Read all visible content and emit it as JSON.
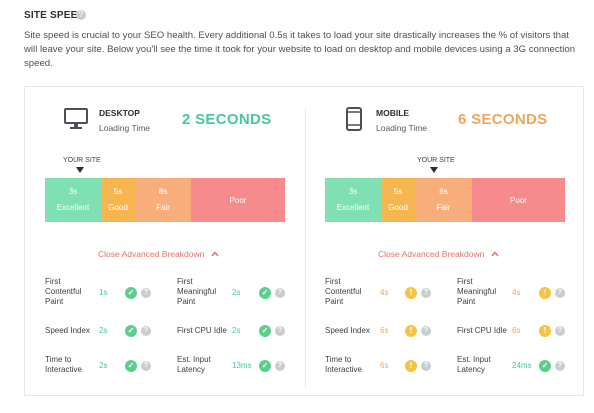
{
  "section": {
    "title": "SITE SPEED",
    "intro": "Site speed is crucial to your SEO health. Every additional 0.5s it takes to load your site drastically increases the % of visitors that will leave your site. Below you'll see the time it took for your website to load on desktop and mobile devices using a 3G connection speed."
  },
  "icons": {
    "help": "question-icon",
    "desktop": "desktop-monitor-icon",
    "mobile": "mobile-phone-icon",
    "chevron": "chevron-up-icon",
    "pass": "check-icon",
    "warn": "exclamation-icon",
    "info": "question-icon"
  },
  "colors": {
    "excellent": "#7fe0b3",
    "good": "#f5b64f",
    "fair": "#f9ad7a",
    "poor": "#f78a8a",
    "accent_green": "#47c79a",
    "accent_orange": "#f0a55e",
    "link": "#e0736d"
  },
  "desktop": {
    "name": "DESKTOP",
    "sub": "Loading Time",
    "time": "2 SECONDS",
    "marker": "YOUR SITE",
    "scale": [
      {
        "threshold": "3s",
        "label": "Excellent"
      },
      {
        "threshold": "5s",
        "label": "Good"
      },
      {
        "threshold": "8s",
        "label": "Fair"
      },
      {
        "threshold": "",
        "label": "Poor"
      }
    ],
    "toggle": "Close Advanced Breakdown",
    "metrics": {
      "fcp": {
        "label": "First Contentful Paint",
        "value": "1s"
      },
      "fmp": {
        "label": "First Meaningful Paint",
        "value": "2s"
      },
      "si": {
        "label": "Speed Index",
        "value": "2s"
      },
      "fci": {
        "label": "First CPU Idle",
        "value": "2s"
      },
      "tti": {
        "label": "Time to Interactive",
        "value": "2s"
      },
      "eil": {
        "label": "Est. Input Latency",
        "value": "13ms"
      }
    }
  },
  "mobile": {
    "name": "MOBILE",
    "sub": "Loading Time",
    "time": "6 SECONDS",
    "marker": "YOUR SITE",
    "scale": [
      {
        "threshold": "3s",
        "label": "Excellent"
      },
      {
        "threshold": "5s",
        "label": "Good"
      },
      {
        "threshold": "8s",
        "label": "Fair"
      },
      {
        "threshold": "",
        "label": "Poor"
      }
    ],
    "toggle": "Close Advanced Breakdown",
    "metrics": {
      "fcp": {
        "label": "First Contentful Paint",
        "value": "4s"
      },
      "fmp": {
        "label": "First Meaningful Paint",
        "value": "4s"
      },
      "si": {
        "label": "Speed Index",
        "value": "6s"
      },
      "fci": {
        "label": "First CPU Idle",
        "value": "6s"
      },
      "tti": {
        "label": "Time to Interactive",
        "value": "6s"
      },
      "eil": {
        "label": "Est. Input Latency",
        "value": "24ms"
      }
    }
  }
}
